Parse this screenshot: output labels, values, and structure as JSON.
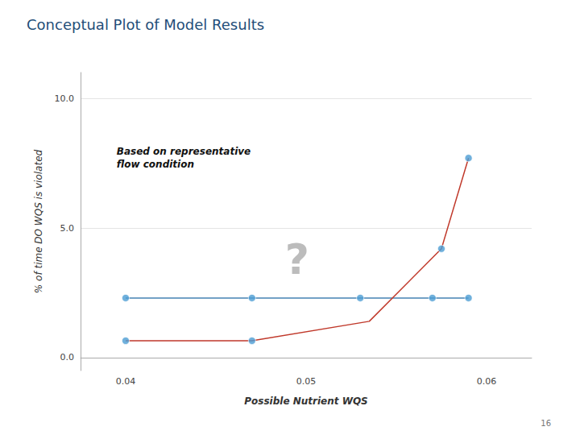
{
  "chart_data": {
    "type": "line",
    "title": "Conceptual Plot of Model Results",
    "title_color": "#1F4E79",
    "xlabel": "Possible Nutrient WQS",
    "ylabel": "% of time DO WQS is violated",
    "xlim": [
      0.0375,
      0.0625
    ],
    "ylim": [
      -0.5,
      11.0
    ],
    "xticks": [
      0.04,
      0.05,
      0.06
    ],
    "yticks": [
      {
        "value": 0.0,
        "label": "0.0"
      },
      {
        "value": 5.0,
        "label": "5.0"
      },
      {
        "value": 10.0,
        "label": "10.0"
      }
    ],
    "grid": true,
    "series": [
      {
        "type": "line",
        "color": "#4682B4",
        "x": [
          0.04,
          0.047,
          0.053,
          0.057,
          0.059
        ],
        "values": [
          2.3,
          2.3,
          2.3,
          2.3,
          2.3
        ]
      },
      {
        "type": "line",
        "color": "#C0392B",
        "x": [
          0.04,
          0.047,
          0.0535,
          0.0575,
          0.059
        ],
        "values": [
          0.65,
          0.65,
          1.4,
          4.2,
          7.7
        ]
      },
      {
        "type": "scatter",
        "marker": "circle",
        "color": "#4B9CD3",
        "x": [
          0.04,
          0.047,
          0.053,
          0.057,
          0.059
        ],
        "values": [
          2.3,
          2.3,
          2.3,
          2.3,
          2.3
        ]
      },
      {
        "type": "scatter",
        "marker": "circle",
        "color": "#4B9CD3",
        "x": [
          0.04,
          0.047,
          0.0575,
          0.059
        ],
        "values": [
          0.65,
          0.65,
          4.2,
          7.7
        ]
      }
    ],
    "annotations": [
      {
        "text": "Based on representative\nflow condition",
        "x": 0.0395,
        "y": 8.2
      },
      {
        "text": "?",
        "x": 0.0495,
        "y": 3.8
      }
    ],
    "page_number": "16"
  }
}
